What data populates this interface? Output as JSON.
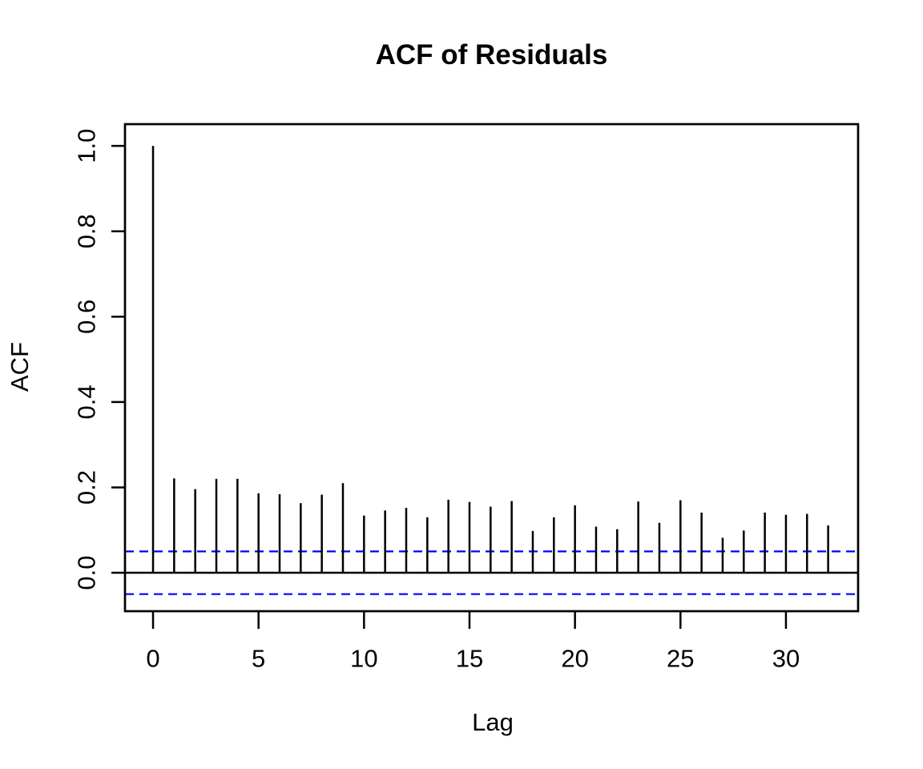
{
  "page": {
    "background": "#ffffff"
  },
  "chart_data": {
    "type": "bar",
    "variant": "acf-stem-plot",
    "title": "ACF of Residuals",
    "xlabel": "Lag",
    "ylabel": "ACF",
    "x": [
      0,
      1,
      2,
      3,
      4,
      5,
      6,
      7,
      8,
      9,
      10,
      11,
      12,
      13,
      14,
      15,
      16,
      17,
      18,
      19,
      20,
      21,
      22,
      23,
      24,
      25,
      26,
      27,
      28,
      29,
      30,
      31,
      32
    ],
    "values": [
      1.0,
      0.221,
      0.196,
      0.22,
      0.22,
      0.186,
      0.184,
      0.163,
      0.183,
      0.21,
      0.134,
      0.146,
      0.152,
      0.13,
      0.171,
      0.166,
      0.155,
      0.168,
      0.098,
      0.13,
      0.158,
      0.108,
      0.102,
      0.167,
      0.117,
      0.17,
      0.141,
      0.082,
      0.099,
      0.141,
      0.136,
      0.138,
      0.111
    ],
    "zero_line": 0.0,
    "confidence_bounds": {
      "upper": 0.05,
      "lower": -0.05,
      "line_style": "dashed",
      "color": "#0000ff"
    },
    "x_ticks": [
      0,
      5,
      10,
      15,
      20,
      25,
      30
    ],
    "x_tick_labels": [
      "0",
      "5",
      "10",
      "15",
      "20",
      "25",
      "30"
    ],
    "y_ticks": [
      0.0,
      0.2,
      0.4,
      0.6,
      0.8,
      1.0
    ],
    "y_tick_labels": [
      "0.0",
      "0.2",
      "0.4",
      "0.6",
      "0.8",
      "1.0"
    ],
    "xlim": [
      -1.33,
      33.42
    ],
    "ylim": [
      -0.09,
      1.051
    ],
    "grid": false,
    "legend": null,
    "colors": {
      "spike": "#000000",
      "axis_box": "#000000",
      "zero_line": "#000000",
      "confidence_line": "#0000ff",
      "text": "#000000",
      "background": "#ffffff"
    }
  }
}
